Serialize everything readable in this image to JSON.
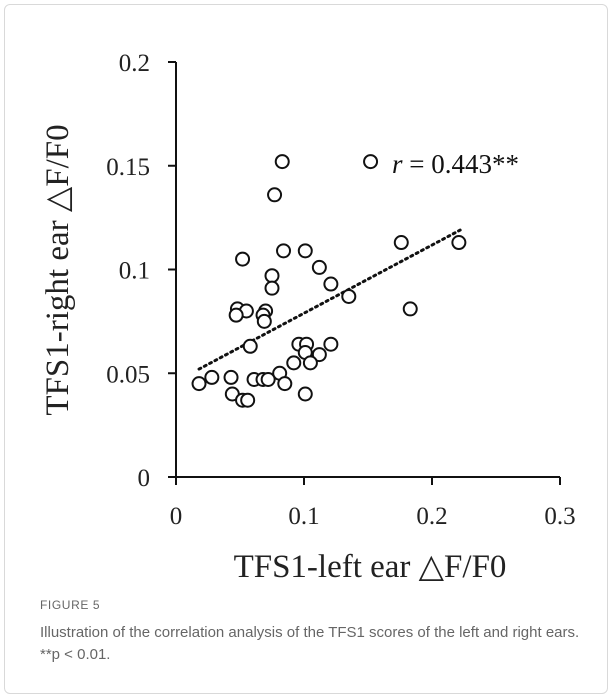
{
  "figure": {
    "label": "FIGURE 5",
    "caption": "Illustration of the correlation analysis of the TFS1 scores of the left and right ears. **p < 0.01."
  },
  "chart_data": {
    "type": "scatter",
    "xlabel": "TFS1-left ear △F/F0",
    "ylabel": "TFS1-right ear △F/F0",
    "xlim": [
      0,
      0.3
    ],
    "ylim": [
      0,
      0.2
    ],
    "x_ticks": [
      "0",
      "0.1",
      "0.2",
      "0.3"
    ],
    "y_ticks": [
      "0",
      "0.05",
      "0.1",
      "0.15",
      "0.2"
    ],
    "grid": false,
    "annotation": {
      "r_symbol": "r",
      "r_text": " = 0.443**"
    },
    "trendline": {
      "style": "dotted",
      "x": [
        0.018,
        0.222
      ],
      "y": [
        0.052,
        0.119
      ]
    },
    "points": [
      {
        "x": 0.083,
        "y": 0.152
      },
      {
        "x": 0.152,
        "y": 0.152
      },
      {
        "x": 0.077,
        "y": 0.136
      },
      {
        "x": 0.176,
        "y": 0.113
      },
      {
        "x": 0.221,
        "y": 0.113
      },
      {
        "x": 0.084,
        "y": 0.109
      },
      {
        "x": 0.101,
        "y": 0.109
      },
      {
        "x": 0.052,
        "y": 0.105
      },
      {
        "x": 0.112,
        "y": 0.101
      },
      {
        "x": 0.075,
        "y": 0.097
      },
      {
        "x": 0.121,
        "y": 0.093
      },
      {
        "x": 0.075,
        "y": 0.091
      },
      {
        "x": 0.135,
        "y": 0.087
      },
      {
        "x": 0.183,
        "y": 0.081
      },
      {
        "x": 0.048,
        "y": 0.081
      },
      {
        "x": 0.055,
        "y": 0.08
      },
      {
        "x": 0.07,
        "y": 0.08
      },
      {
        "x": 0.047,
        "y": 0.078
      },
      {
        "x": 0.068,
        "y": 0.078
      },
      {
        "x": 0.069,
        "y": 0.075
      },
      {
        "x": 0.096,
        "y": 0.064
      },
      {
        "x": 0.102,
        "y": 0.064
      },
      {
        "x": 0.121,
        "y": 0.064
      },
      {
        "x": 0.058,
        "y": 0.063
      },
      {
        "x": 0.101,
        "y": 0.06
      },
      {
        "x": 0.112,
        "y": 0.059
      },
      {
        "x": 0.092,
        "y": 0.055
      },
      {
        "x": 0.105,
        "y": 0.055
      },
      {
        "x": 0.081,
        "y": 0.05
      },
      {
        "x": 0.028,
        "y": 0.048
      },
      {
        "x": 0.043,
        "y": 0.048
      },
      {
        "x": 0.061,
        "y": 0.047
      },
      {
        "x": 0.068,
        "y": 0.047
      },
      {
        "x": 0.072,
        "y": 0.047
      },
      {
        "x": 0.018,
        "y": 0.045
      },
      {
        "x": 0.085,
        "y": 0.045
      },
      {
        "x": 0.044,
        "y": 0.04
      },
      {
        "x": 0.101,
        "y": 0.04
      },
      {
        "x": 0.052,
        "y": 0.037
      },
      {
        "x": 0.056,
        "y": 0.037
      }
    ]
  }
}
